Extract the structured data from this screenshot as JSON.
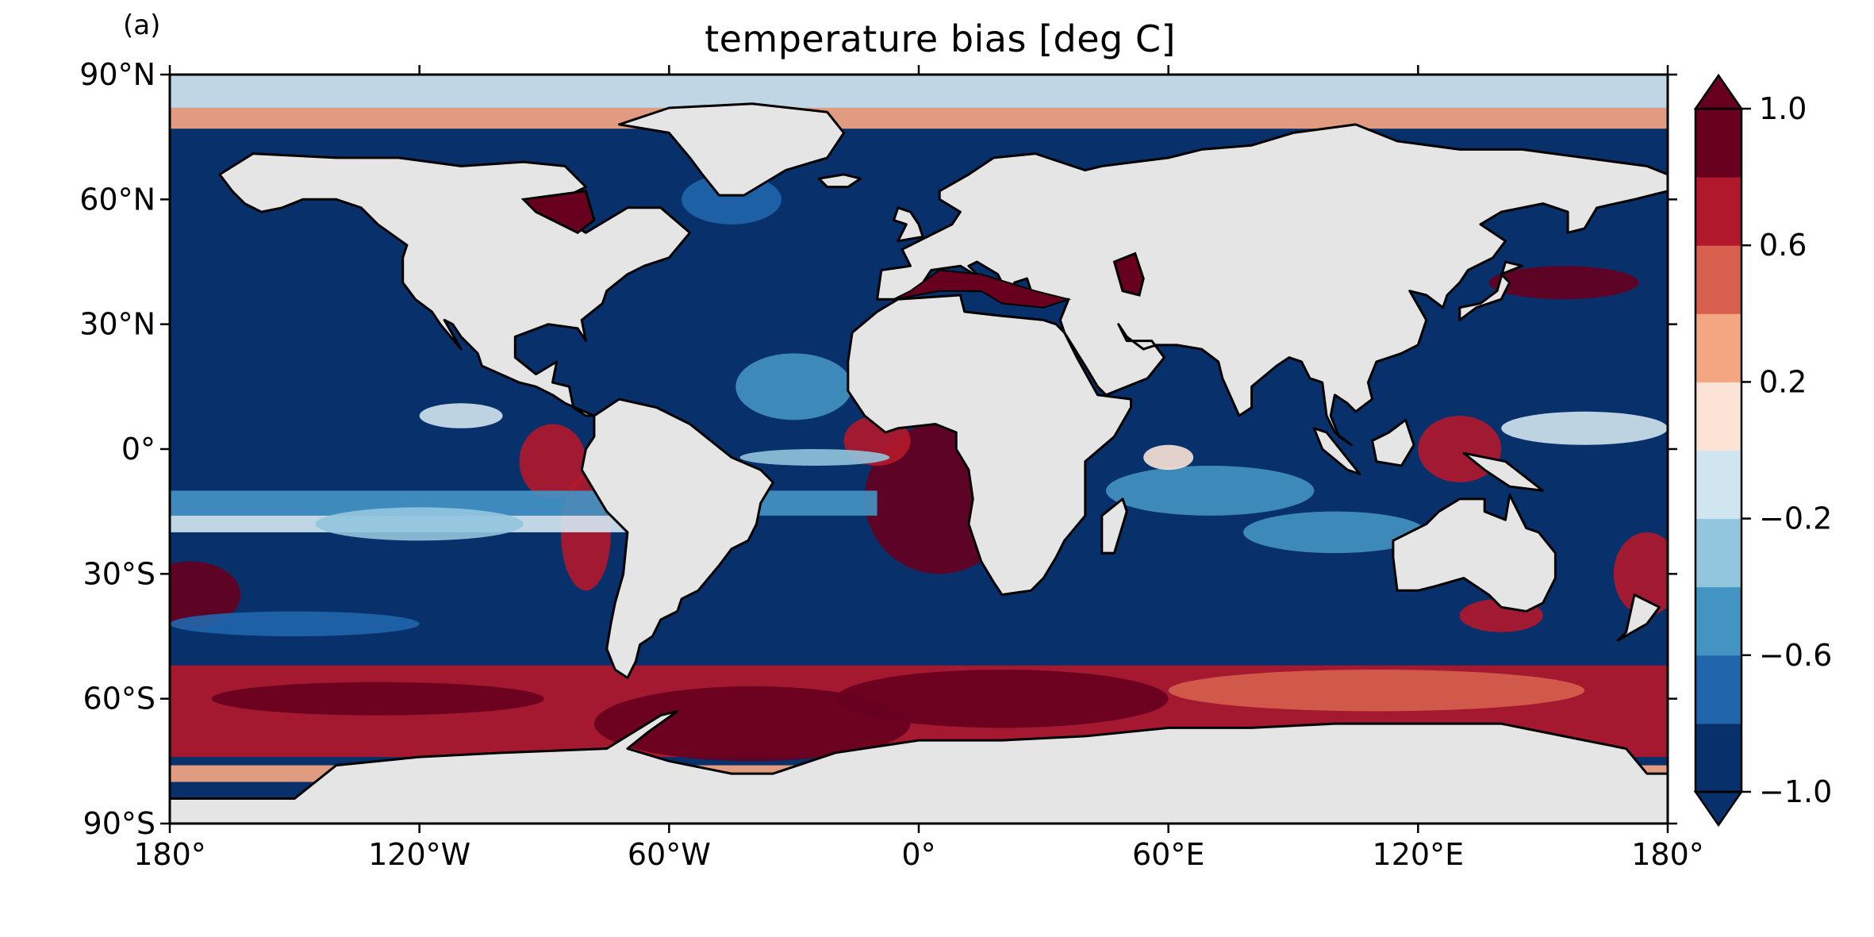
{
  "panel_label": "(a)",
  "title": "temperature bias [deg C]",
  "map": {
    "projection": "PlateCarree",
    "lon_range": [
      -180,
      180
    ],
    "lat_range": [
      -90,
      90
    ],
    "land_color": "#e5e5e5",
    "coastline_color": "#000000",
    "field": "temperature bias",
    "units": "deg C",
    "lon_ticks": [
      {
        "lon": -180,
        "label": "180°"
      },
      {
        "lon": -120,
        "label": "120°W"
      },
      {
        "lon": -60,
        "label": "60°W"
      },
      {
        "lon": 0,
        "label": "0°"
      },
      {
        "lon": 60,
        "label": "60°E"
      },
      {
        "lon": 120,
        "label": "120°E"
      },
      {
        "lon": 180,
        "label": "180°"
      }
    ],
    "lat_ticks": [
      {
        "lat": 90,
        "label": "90°N"
      },
      {
        "lat": 60,
        "label": "60°N"
      },
      {
        "lat": 30,
        "label": "30°N"
      },
      {
        "lat": 0,
        "label": "0°"
      },
      {
        "lat": -30,
        "label": "30°S"
      },
      {
        "lat": -60,
        "label": "60°S"
      },
      {
        "lat": -90,
        "label": "90°S"
      }
    ]
  },
  "colorbar": {
    "extend": "both",
    "levels": [
      -1.0,
      -0.8,
      -0.6,
      -0.4,
      -0.2,
      0.0,
      0.2,
      0.4,
      0.6,
      0.8,
      1.0
    ],
    "colors": [
      "#08306b",
      "#2166ac",
      "#4393c3",
      "#92c5de",
      "#d1e5f0",
      "#fbe3d6",
      "#f4a582",
      "#d6604d",
      "#b2182b",
      "#67001f"
    ],
    "tick_labels": [
      {
        "value": -1.0,
        "label": "−1.0"
      },
      {
        "value": -0.6,
        "label": "−0.6"
      },
      {
        "value": -0.2,
        "label": "−0.2"
      },
      {
        "value": 0.2,
        "label": "0.2"
      },
      {
        "value": 0.6,
        "label": "0.6"
      },
      {
        "value": 1.0,
        "label": "1.0"
      }
    ]
  }
}
